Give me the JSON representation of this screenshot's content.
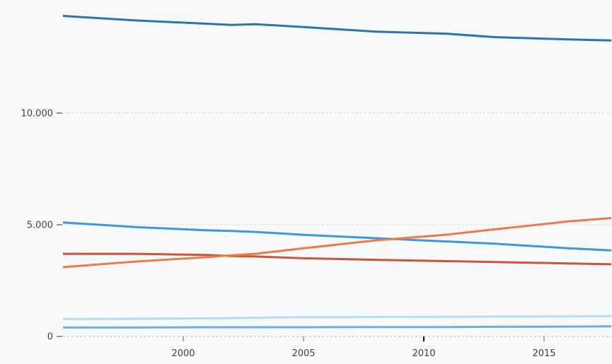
{
  "chart_data": {
    "type": "line",
    "title": "",
    "xlabel": "",
    "ylabel": "",
    "xlim": [
      1995,
      2017.8
    ],
    "ylim": [
      0,
      14500
    ],
    "x_ticks": [
      {
        "value": 2000,
        "label": "2000"
      },
      {
        "value": 2005,
        "label": "2005"
      },
      {
        "value": 2010,
        "label": "2010"
      },
      {
        "value": 2015,
        "label": "2015"
      }
    ],
    "y_ticks": [
      {
        "value": 0,
        "label": "0"
      },
      {
        "value": 5000,
        "label": "5.000"
      },
      {
        "value": 10000,
        "label": "10.000"
      }
    ],
    "grid": "horizontal dashed",
    "legend": "none",
    "x": [
      1995,
      1998,
      2001,
      2002,
      2003,
      2005,
      2008,
      2011,
      2013,
      2016,
      2017.8
    ],
    "series": [
      {
        "color": "#2a73b5",
        "values": [
          14350,
          14150,
          14000,
          13950,
          13980,
          13850,
          13650,
          13550,
          13400,
          13300,
          13250
        ]
      },
      {
        "color": "#3f97e0",
        "values": [
          5100,
          4900,
          4750,
          4720,
          4680,
          4550,
          4400,
          4250,
          4150,
          3950,
          3850
        ]
      },
      {
        "color": "#c8563a",
        "values": [
          3700,
          3700,
          3650,
          3600,
          3580,
          3500,
          3430,
          3370,
          3330,
          3270,
          3230
        ]
      },
      {
        "color": "#ee7a45",
        "values": [
          3100,
          3350,
          3550,
          3630,
          3700,
          3950,
          4300,
          4560,
          4800,
          5150,
          5300
        ]
      },
      {
        "color": "#b9dcf5",
        "values": [
          780,
          790,
          810,
          820,
          840,
          860,
          870,
          880,
          890,
          900,
          910
        ]
      },
      {
        "color": "#6ab0e8",
        "values": [
          400,
          400,
          410,
          410,
          410,
          410,
          420,
          420,
          430,
          440,
          450
        ]
      }
    ]
  }
}
